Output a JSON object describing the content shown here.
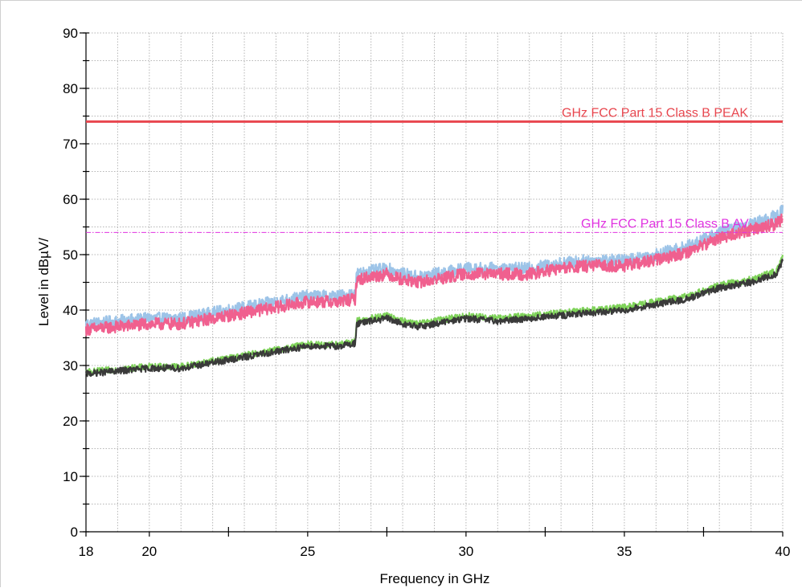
{
  "chart_data": {
    "type": "line",
    "xlabel": "Frequency in GHz",
    "ylabel": "Level in dBµV/",
    "xlim": [
      18,
      40
    ],
    "ylim": [
      0,
      90
    ],
    "x_ticks": [
      "18",
      "20",
      "25",
      "30",
      "35",
      "40"
    ],
    "x_tick_values": [
      18,
      20,
      25,
      30,
      35,
      40
    ],
    "y_ticks": [
      "0",
      "10",
      "20",
      "30",
      "40",
      "50",
      "60",
      "70",
      "80",
      "90"
    ],
    "y_tick_values": [
      0,
      10,
      20,
      30,
      40,
      50,
      60,
      70,
      80,
      90
    ],
    "grid": true,
    "limit_lines": [
      {
        "label": "GHz FCC Part 15 Class B PEAK",
        "value": 74,
        "color": "#e8474f",
        "style": "solid"
      },
      {
        "label": "GHz FCC Part 15 Class B AV",
        "value": 54,
        "color": "#e033e0",
        "style": "dashdot"
      }
    ],
    "series": [
      {
        "color": "#9dc4e8",
        "x": [
          18,
          19,
          20,
          21,
          22,
          23,
          24,
          25,
          26,
          26.5,
          26.55,
          27,
          27.5,
          28,
          28.5,
          29,
          29.5,
          30,
          31,
          32,
          33,
          34,
          35,
          36,
          37,
          38,
          39,
          39.8,
          40
        ],
        "y": [
          37.5,
          38,
          38.5,
          38.5,
          39.5,
          40.5,
          41.5,
          42.5,
          42.5,
          43,
          46.5,
          47,
          47.5,
          46.5,
          46,
          46.5,
          47,
          47.5,
          47.5,
          47.5,
          48.5,
          49,
          49,
          50,
          51.5,
          54,
          55.5,
          57,
          58
        ]
      },
      {
        "color": "#f0608f",
        "x": [
          18,
          19,
          20,
          21,
          22,
          23,
          24,
          25,
          26,
          26.5,
          26.55,
          27,
          27.5,
          28,
          28.5,
          29,
          29.5,
          30,
          31,
          32,
          33,
          34,
          35,
          36,
          37,
          38,
          39,
          39.8,
          40
        ],
        "y": [
          36.5,
          37,
          37.5,
          37.5,
          38.5,
          39.5,
          40.5,
          41.5,
          41.5,
          42,
          45.5,
          46,
          46.5,
          45.5,
          45,
          45.5,
          46,
          46.5,
          46.5,
          46.5,
          47.5,
          48,
          48,
          49,
          50.5,
          53,
          54.5,
          55.5,
          56.5
        ]
      },
      {
        "color": "#7fd35a",
        "x": [
          18,
          19,
          20,
          21,
          22,
          23,
          24,
          25,
          26,
          26.5,
          26.55,
          27,
          27.5,
          28,
          28.5,
          29,
          29.5,
          30,
          31,
          32,
          33,
          34,
          35,
          36,
          37,
          38,
          39,
          39.8,
          40
        ],
        "y": [
          28.8,
          29.3,
          29.8,
          29.8,
          30.8,
          31.8,
          32.8,
          33.8,
          33.8,
          34.3,
          38,
          38.5,
          39,
          38,
          37.5,
          38,
          38.5,
          39,
          38.5,
          39,
          39.5,
          40,
          40.5,
          41.5,
          42.5,
          44.5,
          45.5,
          47,
          49.5
        ]
      },
      {
        "color": "#3a3a3a",
        "x": [
          18,
          19,
          20,
          21,
          22,
          23,
          24,
          25,
          26,
          26.5,
          26.55,
          27,
          27.5,
          28,
          28.5,
          29,
          29.5,
          30,
          31,
          32,
          33,
          34,
          35,
          36,
          37,
          38,
          39,
          39.8,
          40
        ],
        "y": [
          28.5,
          29,
          29.5,
          29.5,
          30.5,
          31.5,
          32.5,
          33.5,
          33.5,
          34,
          37.5,
          38,
          38.5,
          37.5,
          37,
          37.5,
          38,
          38.5,
          38,
          38.5,
          39,
          39.5,
          40,
          41,
          42,
          44,
          45,
          46.5,
          49
        ]
      }
    ]
  }
}
